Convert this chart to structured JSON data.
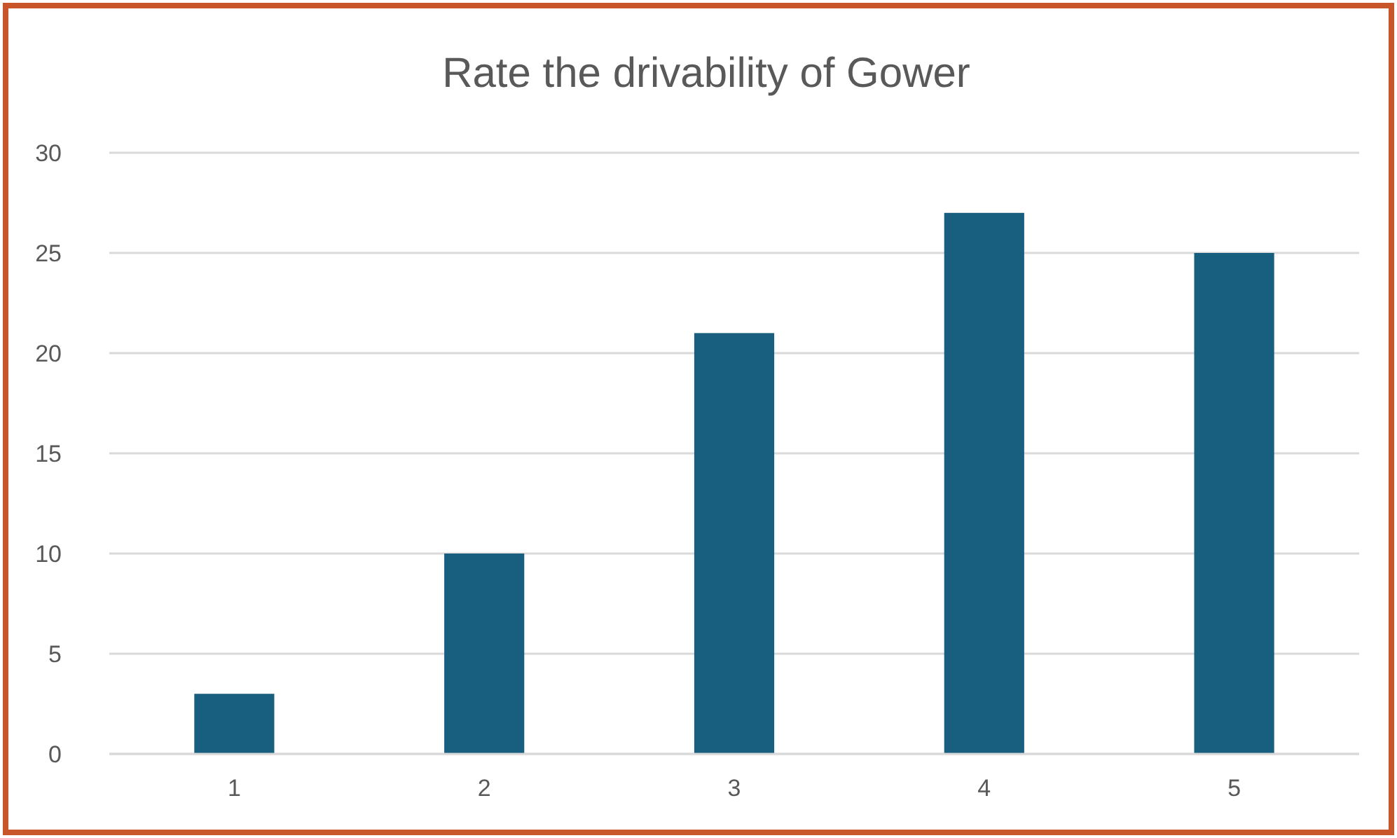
{
  "chart_data": {
    "type": "bar",
    "title": "Rate the drivability of Gower",
    "categories": [
      "1",
      "2",
      "3",
      "4",
      "5"
    ],
    "values": [
      3,
      10,
      21,
      27,
      25
    ],
    "color": "#185e7e",
    "ylim": [
      0,
      30
    ],
    "yticks": [
      0,
      5,
      10,
      15,
      20,
      25,
      30
    ],
    "grid": "y"
  }
}
